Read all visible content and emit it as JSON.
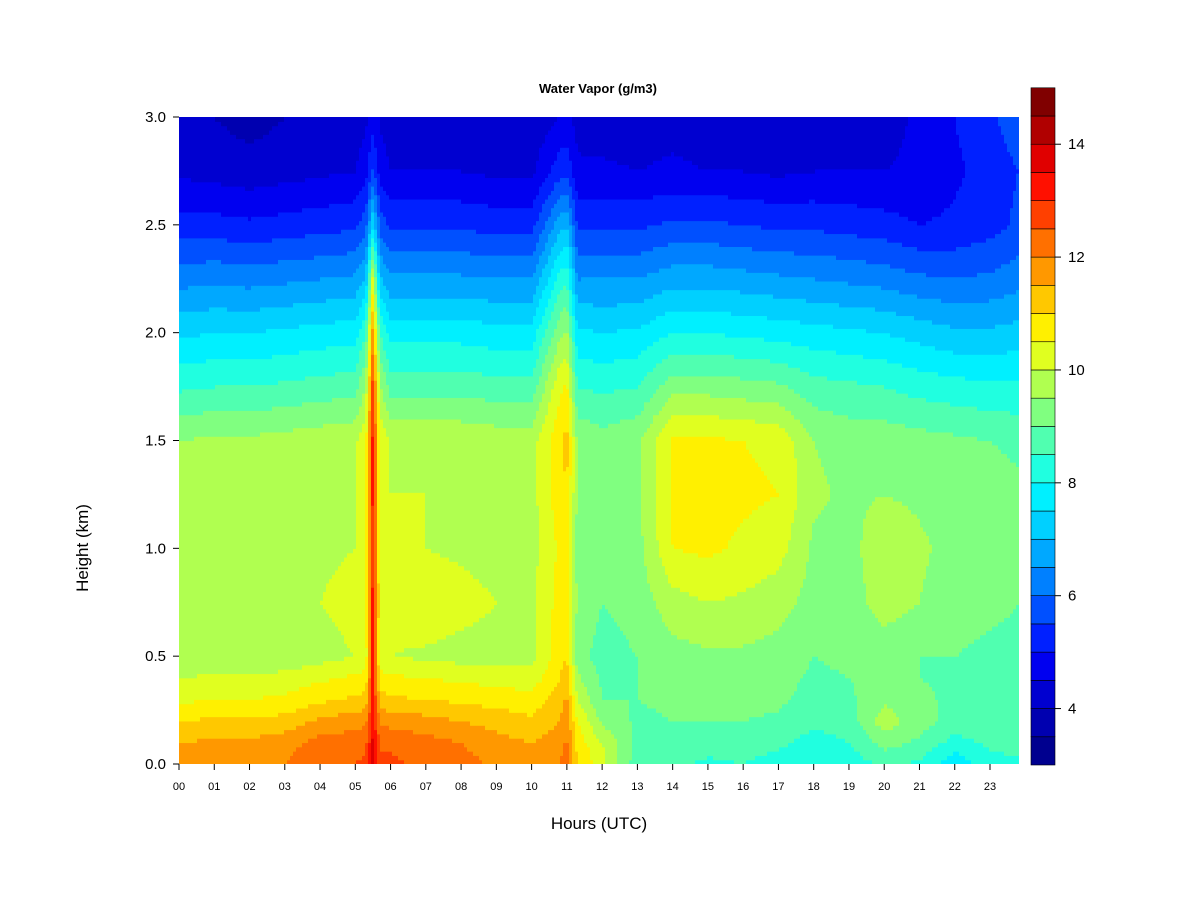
{
  "chart_data": {
    "type": "heatmap",
    "title": "Water Vapor (g/m3)",
    "xlabel": "Hours (UTC)",
    "ylabel": "Height (km)",
    "xlim": [
      0,
      24
    ],
    "ylim": [
      0.0,
      3.0
    ],
    "x_ticks": [
      "00",
      "01",
      "02",
      "03",
      "04",
      "05",
      "06",
      "07",
      "08",
      "09",
      "10",
      "11",
      "12",
      "13",
      "14",
      "15",
      "16",
      "17",
      "18",
      "19",
      "20",
      "21",
      "22",
      "23"
    ],
    "y_ticks": [
      "0.0",
      "0.5",
      "1.0",
      "1.5",
      "2.0",
      "2.5",
      "3.0"
    ],
    "colorbar": {
      "range": [
        3,
        14.5
      ],
      "step": 0.5,
      "tick_labels": [
        "4",
        "6",
        "8",
        "10",
        "12",
        "14"
      ],
      "colors": [
        "#00008F",
        "#0000B0",
        "#0000D0",
        "#0000F0",
        "#0020FF",
        "#0050FF",
        "#0080FF",
        "#00A8FF",
        "#00D0FF",
        "#00F0FF",
        "#20FFE0",
        "#50FFB0",
        "#80FF80",
        "#B0FF50",
        "#E0FF20",
        "#FFF000",
        "#FFC800",
        "#FF9800",
        "#FF7000",
        "#FF4000",
        "#FF1000",
        "#E00000",
        "#B00000",
        "#800000"
      ]
    },
    "times": [
      0,
      1,
      2,
      3,
      4,
      5,
      5.3,
      5.5,
      5.7,
      6,
      7,
      8,
      9,
      10,
      10.8,
      11,
      11.3,
      12,
      13,
      14,
      15,
      16,
      17,
      18,
      19,
      20,
      21,
      22,
      23,
      23.8
    ],
    "heights": [
      0.0,
      0.1,
      0.2,
      0.3,
      0.4,
      0.5,
      0.75,
      1.0,
      1.25,
      1.5,
      1.75,
      2.0,
      2.25,
      2.5,
      2.75,
      3.0
    ],
    "values": [
      [
        11.8,
        11.5,
        11.0,
        10.4,
        10.0,
        9.5,
        9.7,
        9.6,
        9.8,
        9.5,
        8.4,
        7.4,
        6.3,
        5.2,
        4.4,
        4.1
      ],
      [
        11.9,
        11.6,
        11.1,
        10.5,
        10.1,
        9.6,
        9.8,
        9.7,
        9.8,
        9.6,
        8.5,
        7.5,
        6.4,
        5.2,
        4.3,
        4.0
      ],
      [
        11.9,
        11.6,
        11.1,
        10.5,
        10.1,
        9.5,
        9.7,
        9.7,
        9.8,
        9.6,
        8.5,
        7.5,
        6.3,
        5.1,
        4.2,
        3.8
      ],
      [
        12.0,
        11.8,
        11.2,
        10.6,
        10.2,
        9.6,
        9.8,
        9.8,
        9.8,
        9.7,
        8.6,
        7.6,
        6.4,
        5.2,
        4.3,
        4.0
      ],
      [
        12.4,
        12.2,
        11.6,
        10.9,
        10.4,
        9.8,
        10.0,
        9.9,
        9.9,
        9.8,
        8.7,
        7.7,
        6.5,
        5.3,
        4.4,
        4.1
      ],
      [
        12.5,
        12.3,
        11.8,
        11.1,
        10.6,
        10.0,
        10.2,
        10.0,
        10.0,
        9.9,
        8.8,
        7.8,
        6.6,
        5.4,
        4.5,
        4.2
      ],
      [
        12.6,
        12.4,
        11.9,
        11.2,
        10.7,
        10.2,
        10.5,
        10.3,
        10.3,
        10.4,
        9.6,
        8.5,
        7.1,
        5.8,
        4.8,
        4.4
      ],
      [
        13.8,
        13.6,
        13.4,
        13.3,
        13.2,
        13.2,
        13.2,
        13.1,
        13.2,
        13.2,
        12.8,
        11.8,
        10.2,
        7.5,
        5.6,
        4.8
      ],
      [
        12.6,
        12.4,
        11.9,
        11.2,
        10.7,
        10.2,
        10.5,
        10.3,
        10.3,
        10.4,
        9.6,
        8.5,
        7.1,
        5.8,
        4.8,
        4.4
      ],
      [
        12.6,
        12.4,
        11.8,
        11.1,
        10.6,
        10.0,
        10.2,
        10.0,
        10.0,
        9.9,
        8.8,
        7.8,
        6.6,
        5.4,
        4.5,
        4.2
      ],
      [
        12.4,
        12.2,
        11.7,
        11.0,
        10.5,
        9.9,
        10.4,
        10.0,
        10.0,
        9.9,
        8.8,
        7.8,
        6.6,
        5.4,
        4.5,
        4.2
      ],
      [
        12.2,
        12.0,
        11.5,
        10.9,
        10.4,
        9.8,
        10.2,
        9.9,
        9.9,
        9.9,
        8.8,
        7.8,
        6.6,
        5.4,
        4.5,
        4.2
      ],
      [
        11.9,
        11.7,
        11.3,
        10.8,
        10.3,
        9.8,
        10.0,
        9.8,
        9.8,
        9.8,
        8.7,
        7.7,
        6.5,
        5.3,
        4.4,
        4.1
      ],
      [
        11.7,
        11.5,
        11.1,
        10.7,
        10.2,
        9.8,
        9.9,
        9.8,
        9.8,
        9.8,
        8.7,
        7.7,
        6.5,
        5.3,
        4.4,
        4.1
      ],
      [
        12.0,
        11.8,
        11.5,
        11.3,
        11.0,
        10.8,
        10.7,
        10.6,
        10.8,
        10.9,
        10.4,
        9.4,
        8.2,
        6.8,
        5.3,
        4.5
      ],
      [
        12.3,
        12.1,
        11.8,
        11.6,
        11.3,
        11.0,
        10.9,
        10.8,
        11.0,
        11.2,
        10.6,
        9.6,
        8.4,
        7.0,
        5.4,
        4.6
      ],
      [
        11.0,
        10.8,
        10.5,
        10.0,
        9.6,
        9.2,
        9.4,
        9.3,
        9.4,
        9.4,
        8.5,
        7.6,
        6.5,
        5.4,
        4.6,
        4.3
      ],
      [
        10.2,
        10.0,
        9.4,
        9.0,
        8.9,
        8.8,
        9.0,
        9.1,
        9.2,
        9.2,
        8.4,
        7.5,
        6.5,
        5.4,
        4.6,
        4.2
      ],
      [
        8.7,
        8.8,
        8.9,
        9.0,
        9.0,
        9.0,
        9.2,
        9.3,
        9.4,
        9.4,
        8.5,
        7.6,
        6.5,
        5.4,
        4.5,
        4.2
      ],
      [
        8.6,
        8.8,
        9.0,
        9.1,
        9.2,
        9.3,
        9.8,
        10.5,
        10.6,
        10.6,
        9.3,
        8.0,
        6.8,
        5.6,
        4.6,
        4.3
      ],
      [
        8.4,
        8.7,
        9.0,
        9.2,
        9.3,
        9.4,
        10.0,
        10.6,
        10.7,
        10.6,
        9.3,
        8.0,
        6.8,
        5.6,
        4.5,
        4.2
      ],
      [
        8.5,
        8.7,
        9.0,
        9.2,
        9.3,
        9.4,
        9.9,
        10.4,
        10.6,
        10.5,
        9.2,
        7.9,
        6.7,
        5.5,
        4.5,
        4.2
      ],
      [
        8.3,
        8.6,
        8.9,
        9.1,
        9.2,
        9.3,
        9.7,
        10.2,
        10.5,
        10.4,
        9.1,
        7.8,
        6.6,
        5.4,
        4.4,
        4.1
      ],
      [
        8.0,
        8.3,
        8.6,
        8.8,
        8.9,
        9.0,
        9.3,
        9.4,
        9.6,
        9.5,
        8.7,
        7.7,
        6.5,
        5.4,
        4.5,
        4.2
      ],
      [
        8.2,
        8.5,
        8.7,
        8.9,
        9.0,
        9.1,
        9.2,
        9.3,
        9.4,
        9.3,
        8.6,
        7.6,
        6.4,
        5.3,
        4.5,
        4.2
      ],
      [
        8.6,
        9.2,
        9.8,
        9.4,
        9.1,
        9.1,
        9.8,
        9.9,
        9.5,
        9.3,
        8.5,
        7.5,
        6.3,
        5.2,
        4.5,
        4.3
      ],
      [
        8.4,
        8.9,
        9.2,
        9.1,
        9.0,
        9.0,
        9.5,
        9.6,
        9.4,
        9.2,
        8.3,
        7.3,
        6.1,
        5.0,
        4.6,
        4.6
      ],
      [
        7.6,
        8.3,
        8.8,
        8.9,
        8.9,
        9.0,
        9.2,
        9.3,
        9.3,
        9.1,
        8.2,
        7.1,
        6.0,
        5.1,
        4.9,
        5.0
      ],
      [
        8.3,
        8.6,
        8.8,
        8.9,
        8.9,
        8.9,
        9.1,
        9.2,
        9.2,
        9.0,
        8.1,
        7.1,
        6.1,
        5.3,
        5.2,
        5.4
      ],
      [
        8.4,
        8.7,
        8.8,
        8.9,
        8.9,
        8.9,
        9.0,
        9.1,
        9.1,
        8.9,
        8.1,
        7.2,
        6.3,
        5.6,
        5.5,
        5.8
      ]
    ]
  }
}
